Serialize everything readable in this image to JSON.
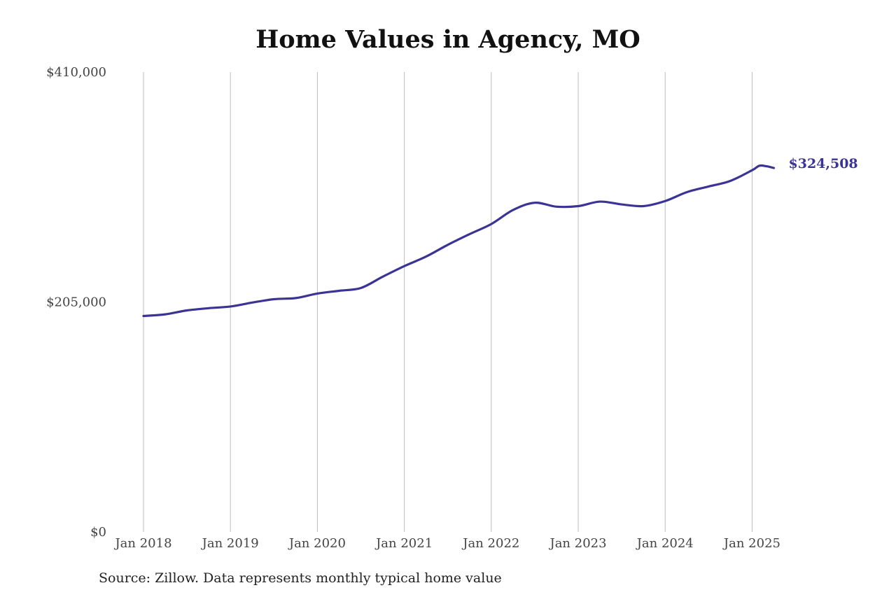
{
  "chart_data": {
    "type": "line",
    "title": "Home Values in Agency, MO",
    "source_note": "Source: Zillow. Data represents monthly typical home value",
    "ylim": [
      0,
      410000
    ],
    "xlim": [
      "2018-01",
      "2025-04"
    ],
    "y_ticks": [
      {
        "value": 0,
        "label": "$0"
      },
      {
        "value": 205000,
        "label": "$205,000"
      },
      {
        "value": 410000,
        "label": "$410,000"
      }
    ],
    "x_ticks": [
      {
        "value": "2018-01",
        "label": "Jan 2018"
      },
      {
        "value": "2019-01",
        "label": "Jan 2019"
      },
      {
        "value": "2020-01",
        "label": "Jan 2020"
      },
      {
        "value": "2021-01",
        "label": "Jan 2021"
      },
      {
        "value": "2022-01",
        "label": "Jan 2022"
      },
      {
        "value": "2023-01",
        "label": "Jan 2023"
      },
      {
        "value": "2024-01",
        "label": "Jan 2024"
      },
      {
        "value": "2025-01",
        "label": "Jan 2025"
      }
    ],
    "grid": {
      "vertical": true,
      "horizontal": false
    },
    "line_color": "#3b3494",
    "end_label": "$324,508",
    "series": [
      {
        "x": [
          "2018-01",
          "2018-04",
          "2018-07",
          "2018-10",
          "2019-01",
          "2019-04",
          "2019-07",
          "2019-10",
          "2020-01",
          "2020-04",
          "2020-07",
          "2020-10",
          "2021-01",
          "2021-04",
          "2021-07",
          "2021-10",
          "2022-01",
          "2022-04",
          "2022-07",
          "2022-10",
          "2023-01",
          "2023-04",
          "2023-07",
          "2023-10",
          "2024-01",
          "2024-04",
          "2024-07",
          "2024-10",
          "2025-01",
          "2025-02",
          "2025-03",
          "2025-04"
        ],
        "y": [
          192500,
          194000,
          197500,
          199500,
          201000,
          204500,
          207500,
          208500,
          212500,
          215000,
          217500,
          227500,
          237000,
          245500,
          256000,
          265500,
          274500,
          287000,
          293500,
          290000,
          290500,
          294500,
          292000,
          290500,
          295000,
          303000,
          308000,
          313000,
          322500,
          326500,
          326000,
          324508
        ]
      }
    ]
  }
}
